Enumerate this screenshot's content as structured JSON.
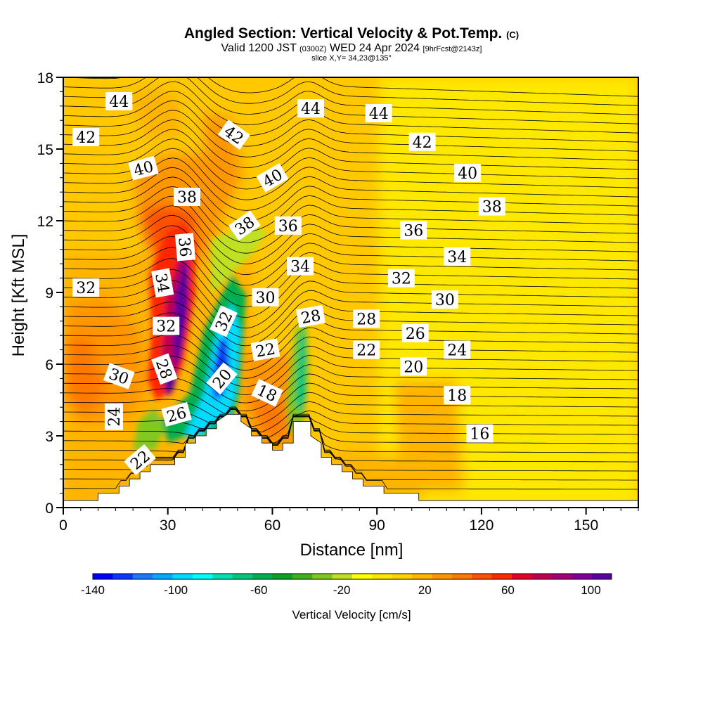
{
  "chart_data": {
    "type": "heatmap",
    "title": "Angled Section: Vertical Velocity & Pot.Temp.",
    "title_suffix": "(C)",
    "subtitle_main": "Valid 1200 JST",
    "subtitle_zulu": "(0300Z)",
    "subtitle_date": "WED 24 Apr 2024",
    "subtitle_fcst": "[9hrFcst@2143z]",
    "slice_info": "slice X,Y= 34,23@135°",
    "xlabel": "Distance [nm]",
    "ylabel": "Height [Kft MSL]",
    "xlim": [
      0,
      165
    ],
    "ylim": [
      0,
      18
    ],
    "x_ticks": [
      "0",
      "30",
      "60",
      "90",
      "120",
      "150"
    ],
    "y_ticks": [
      "0",
      "3",
      "6",
      "9",
      "12",
      "15",
      "18"
    ],
    "colorbar": {
      "label": "Vertical Velocity [cm/s]",
      "tick_labels": [
        "-140",
        "-100",
        "-60",
        "-20",
        "20",
        "60",
        "100"
      ],
      "range": [
        -140,
        110
      ],
      "colors": [
        "#0000ff",
        "#0a37ff",
        "#1e78ff",
        "#00aaff",
        "#00dcff",
        "#00ffff",
        "#00e0b0",
        "#00c878",
        "#00b050",
        "#10a020",
        "#40b020",
        "#80c820",
        "#c0e020",
        "#ffff00",
        "#ffe600",
        "#ffd200",
        "#ffb400",
        "#ff9600",
        "#ff7800",
        "#ff5000",
        "#ff2800",
        "#e60028",
        "#c00050",
        "#a00078",
        "#800096",
        "#5a00a0"
      ]
    },
    "terrain_kft": [
      [
        0,
        0.3
      ],
      [
        10,
        0.3
      ],
      [
        10,
        0.6
      ],
      [
        16,
        0.6
      ],
      [
        16,
        0.9
      ],
      [
        19,
        0.9
      ],
      [
        19,
        1.2
      ],
      [
        22,
        1.2
      ],
      [
        22,
        1.5
      ],
      [
        25,
        1.5
      ],
      [
        25,
        1.8
      ],
      [
        32,
        1.8
      ],
      [
        32,
        2.1
      ],
      [
        35,
        2.1
      ],
      [
        35,
        2.7
      ],
      [
        38,
        2.7
      ],
      [
        38,
        3.0
      ],
      [
        41,
        3.0
      ],
      [
        41,
        3.3
      ],
      [
        44,
        3.3
      ],
      [
        44,
        3.6
      ],
      [
        47,
        3.9
      ],
      [
        51,
        3.9
      ],
      [
        51,
        3.6
      ],
      [
        54,
        3.3
      ],
      [
        54,
        3.0
      ],
      [
        57,
        3.0
      ],
      [
        57,
        2.7
      ],
      [
        60,
        2.7
      ],
      [
        60,
        2.4
      ],
      [
        63,
        2.4
      ],
      [
        63,
        2.7
      ],
      [
        66,
        2.7
      ],
      [
        66,
        3.6
      ],
      [
        71,
        3.6
      ],
      [
        71,
        3.0
      ],
      [
        74,
        2.7
      ],
      [
        74,
        2.1
      ],
      [
        77,
        2.1
      ],
      [
        77,
        1.8
      ],
      [
        80,
        1.8
      ],
      [
        80,
        1.5
      ],
      [
        83,
        1.5
      ],
      [
        83,
        1.2
      ],
      [
        86,
        1.2
      ],
      [
        86,
        0.9
      ],
      [
        92,
        0.9
      ],
      [
        92,
        0.6
      ],
      [
        102,
        0.6
      ],
      [
        102,
        0.3
      ],
      [
        165,
        0.3
      ]
    ],
    "theta_labels": [
      {
        "text": "44",
        "x": 16,
        "y": 17.0,
        "rot": 0
      },
      {
        "text": "42",
        "x": 6.5,
        "y": 15.5,
        "rot": 0
      },
      {
        "text": "40",
        "x": 23,
        "y": 14.2,
        "rot": -15
      },
      {
        "text": "38",
        "x": 35.5,
        "y": 13.0,
        "rot": 0
      },
      {
        "text": "42",
        "x": 49,
        "y": 15.6,
        "rot": 35
      },
      {
        "text": "40",
        "x": 60,
        "y": 13.8,
        "rot": -30
      },
      {
        "text": "38",
        "x": 52,
        "y": 11.8,
        "rot": -35
      },
      {
        "text": "36",
        "x": 35,
        "y": 10.9,
        "rot": 85
      },
      {
        "text": "36",
        "x": 64.5,
        "y": 11.8,
        "rot": 0
      },
      {
        "text": "44",
        "x": 71,
        "y": 16.7,
        "rot": 0
      },
      {
        "text": "44",
        "x": 90.5,
        "y": 16.5,
        "rot": 0
      },
      {
        "text": "42",
        "x": 103,
        "y": 15.3,
        "rot": 0
      },
      {
        "text": "40",
        "x": 116,
        "y": 14.0,
        "rot": 0
      },
      {
        "text": "38",
        "x": 123,
        "y": 12.6,
        "rot": 0
      },
      {
        "text": "36",
        "x": 100.5,
        "y": 11.6,
        "rot": 0
      },
      {
        "text": "34",
        "x": 113,
        "y": 10.5,
        "rot": 0
      },
      {
        "text": "34",
        "x": 68,
        "y": 10.1,
        "rot": 0
      },
      {
        "text": "34",
        "x": 28.5,
        "y": 9.4,
        "rot": 80
      },
      {
        "text": "32",
        "x": 6.5,
        "y": 9.2,
        "rot": 0
      },
      {
        "text": "32",
        "x": 97,
        "y": 9.6,
        "rot": 0
      },
      {
        "text": "30",
        "x": 109.5,
        "y": 8.7,
        "rot": 0
      },
      {
        "text": "30",
        "x": 58,
        "y": 8.8,
        "rot": 0
      },
      {
        "text": "32",
        "x": 46,
        "y": 7.8,
        "rot": -65
      },
      {
        "text": "32",
        "x": 29.5,
        "y": 7.6,
        "rot": 0
      },
      {
        "text": "28",
        "x": 71,
        "y": 8.0,
        "rot": -10
      },
      {
        "text": "28",
        "x": 87,
        "y": 7.9,
        "rot": 0
      },
      {
        "text": "26",
        "x": 101,
        "y": 7.3,
        "rot": 0
      },
      {
        "text": "24",
        "x": 113,
        "y": 6.6,
        "rot": 0
      },
      {
        "text": "22",
        "x": 58,
        "y": 6.6,
        "rot": -10
      },
      {
        "text": "22",
        "x": 87,
        "y": 6.6,
        "rot": 0
      },
      {
        "text": "20",
        "x": 100.5,
        "y": 5.9,
        "rot": 0
      },
      {
        "text": "28",
        "x": 29,
        "y": 5.8,
        "rot": 70
      },
      {
        "text": "30",
        "x": 16,
        "y": 5.5,
        "rot": 20
      },
      {
        "text": "20",
        "x": 45.5,
        "y": 5.4,
        "rot": -50
      },
      {
        "text": "18",
        "x": 58.5,
        "y": 4.8,
        "rot": 25
      },
      {
        "text": "18",
        "x": 113,
        "y": 4.7,
        "rot": 0
      },
      {
        "text": "24",
        "x": 14.5,
        "y": 3.8,
        "rot": -90
      },
      {
        "text": "26",
        "x": 32.5,
        "y": 3.9,
        "rot": -15
      },
      {
        "text": "16",
        "x": 119.5,
        "y": 3.1,
        "rot": 0
      },
      {
        "text": "22",
        "x": 22,
        "y": 2.0,
        "rot": -40
      }
    ]
  }
}
